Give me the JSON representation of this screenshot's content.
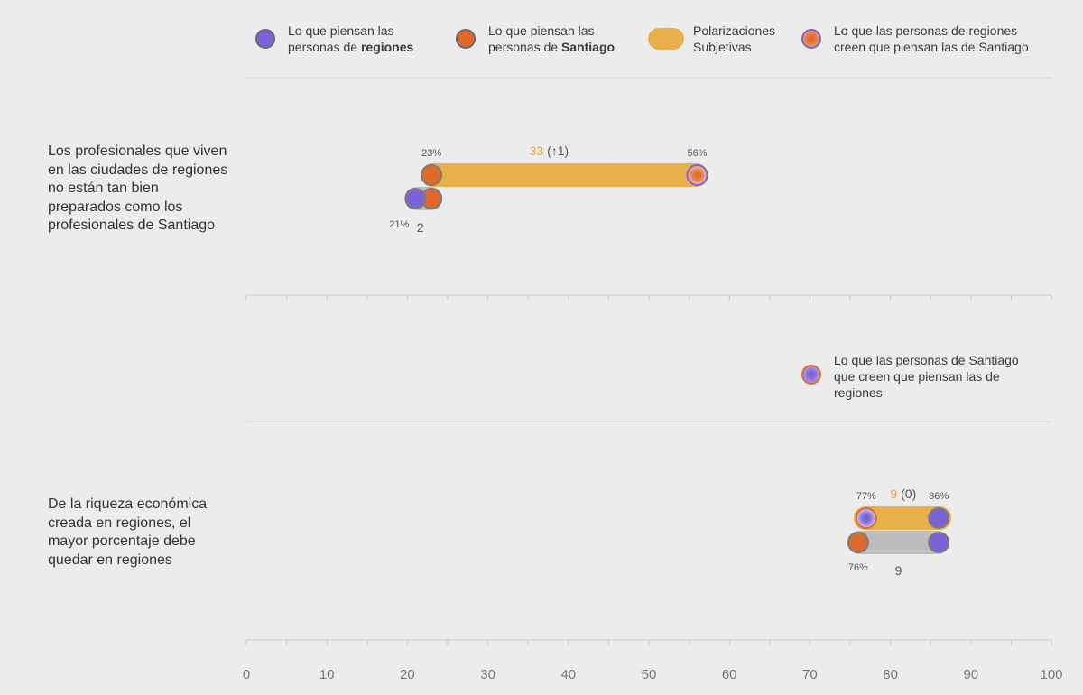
{
  "legend": {
    "regiones": {
      "pre": "Lo que piensan las\npersonas de ",
      "bold": "regiones"
    },
    "santiago": {
      "pre": "Lo que piensan las\npersonas de ",
      "bold": "Santiago"
    },
    "polarizaciones": "Polarizaciones\nSubjetivas",
    "regiones_believe": "Lo que las personas de regiones\ncreen que piensan las de Santiago",
    "santiago_believe": "Lo que las personas de Santiago\nque creen que piensan las de\nregiones"
  },
  "colors": {
    "regiones": "#7b62d6",
    "santiago": "#e0692c",
    "polarization": "#e8b04a",
    "gray_bar": "#bdbdbd",
    "orange_text": "#e8a33a"
  },
  "chart_data": {
    "type": "dot-range",
    "xlim": [
      0,
      100
    ],
    "xticks": [
      0,
      10,
      20,
      30,
      40,
      50,
      60,
      70,
      80,
      90,
      100
    ],
    "rows": [
      {
        "label": "Los profesionales que viven en las ciudades de regiones no están tan bien preparados como los profesionales de Santiago",
        "santiago": 23,
        "perceived": 56,
        "perceived_kind": "regiones_believe_santiago",
        "regiones": 21,
        "santiago_label": "23%",
        "perceived_label": "56%",
        "regiones_label": "21%",
        "polarization": 33,
        "polarization_change": "(↑1)",
        "real_gap": 2
      },
      {
        "label": "De la riqueza económica creada en regiones, el mayor porcentaje debe quedar en regiones",
        "regiones": 86,
        "perceived": 77,
        "perceived_kind": "santiago_believe_regiones",
        "santiago": 76,
        "regiones_label": "86%",
        "perceived_label": "77%",
        "santiago_label": "76%",
        "polarization": 9,
        "polarization_change": "(0)",
        "real_gap": 9
      }
    ]
  }
}
